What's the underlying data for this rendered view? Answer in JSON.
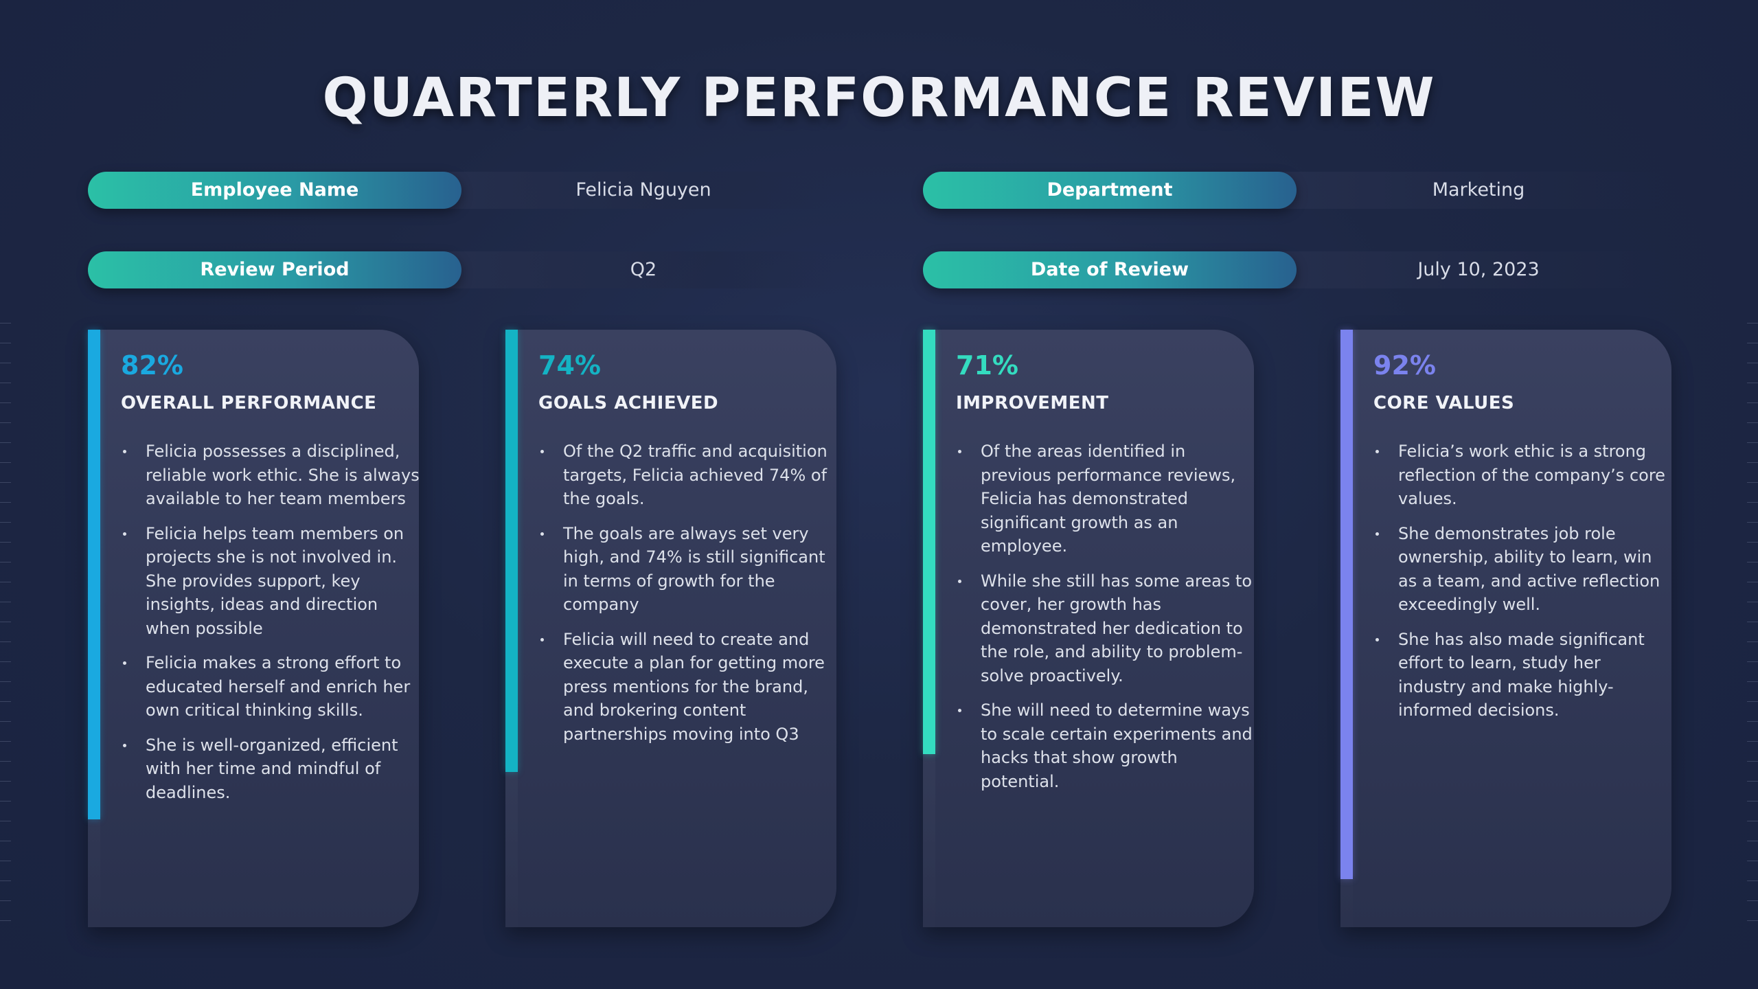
{
  "title": "QUARTERLY PERFORMANCE REVIEW",
  "info": {
    "employee_name": {
      "label": "Employee Name",
      "value": "Felicia Nguyen"
    },
    "department": {
      "label": "Department",
      "value": "Marketing"
    },
    "review_period": {
      "label": "Review Period",
      "value": "Q2"
    },
    "date_of_review": {
      "label": "Date of Review",
      "value": "July 10, 2023"
    }
  },
  "cards": [
    {
      "percent": "82%",
      "fraction": 0.82,
      "title": "OVERALL PERFORMANCE",
      "color": "#1aa9e0",
      "bullets": [
        "Felicia possesses a disciplined, reliable work ethic. She is always available to her team members",
        "Felicia helps team members on projects she is not involved in. She provides support, key insights, ideas and direction when possible",
        "Felicia makes a strong effort to educated herself and enrich her own critical thinking skills.",
        "She is well-organized, efficient with her time and mindful of deadlines."
      ]
    },
    {
      "percent": "74%",
      "fraction": 0.74,
      "title": "GOALS ACHIEVED",
      "color": "#14b3c4",
      "bullets": [
        "Of the Q2 traffic and acquisition targets, Felicia achieved 74% of the goals.",
        "The goals are always set very high, and 74% is still significant in terms of growth for the company",
        "Felicia will need to create and execute a plan for getting more press mentions for the brand, and brokering content partnerships moving into Q3"
      ]
    },
    {
      "percent": "71%",
      "fraction": 0.71,
      "title": "IMPROVEMENT",
      "color": "#34dcc0",
      "bullets": [
        "Of the areas identified in previous performance reviews, Felicia has demonstrated significant growth as an employee.",
        "While she still has some areas to cover, her growth has demonstrated her dedication to the role, and ability to problem-solve proactively.",
        "She will need to determine ways to scale certain experiments and hacks that show growth potential."
      ]
    },
    {
      "percent": "92%",
      "fraction": 0.92,
      "title": "CORE VALUES",
      "color": "#7b83ee",
      "bullets": [
        "Felicia’s work ethic is a strong reflection of the company’s core values.",
        "She demonstrates job role ownership, ability to learn, win as a team, and active reflection exceedingly well.",
        "She has also made significant effort to learn, study her industry and make highly-informed decisions."
      ]
    }
  ]
}
